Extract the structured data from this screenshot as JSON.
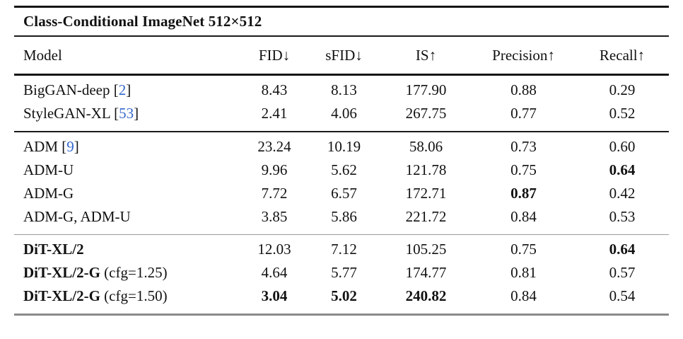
{
  "page": {
    "background": "#ffffff"
  },
  "table": {
    "title": "Class-Conditional ImageNet 512×512",
    "columns": [
      "Model",
      "FID↓",
      "sFID↓",
      "IS↑",
      "Precision↑",
      "Recall↑"
    ],
    "citation_color": "#3366cc",
    "sections": [
      {
        "rows": [
          {
            "model": {
              "name": "BigGAN-deep",
              "bold": false,
              "citation": "2",
              "suffix": ""
            },
            "values": [
              "8.43",
              "8.13",
              "177.90",
              "0.88",
              "0.29"
            ],
            "bold": [
              false,
              false,
              false,
              false,
              false
            ]
          },
          {
            "model": {
              "name": "StyleGAN-XL",
              "bold": false,
              "citation": "53",
              "suffix": ""
            },
            "values": [
              "2.41",
              "4.06",
              "267.75",
              "0.77",
              "0.52"
            ],
            "bold": [
              false,
              false,
              false,
              false,
              false
            ]
          }
        ]
      },
      {
        "rows": [
          {
            "model": {
              "name": "ADM",
              "bold": false,
              "citation": "9",
              "suffix": ""
            },
            "values": [
              "23.24",
              "10.19",
              "58.06",
              "0.73",
              "0.60"
            ],
            "bold": [
              false,
              false,
              false,
              false,
              false
            ]
          },
          {
            "model": {
              "name": "ADM-U",
              "bold": false,
              "citation": "",
              "suffix": ""
            },
            "values": [
              "9.96",
              "5.62",
              "121.78",
              "0.75",
              "0.64"
            ],
            "bold": [
              false,
              false,
              false,
              false,
              true
            ]
          },
          {
            "model": {
              "name": "ADM-G",
              "bold": false,
              "citation": "",
              "suffix": ""
            },
            "values": [
              "7.72",
              "6.57",
              "172.71",
              "0.87",
              "0.42"
            ],
            "bold": [
              false,
              false,
              false,
              true,
              false
            ]
          },
          {
            "model": {
              "name": "ADM-G, ADM-U",
              "bold": false,
              "citation": "",
              "suffix": ""
            },
            "values": [
              "3.85",
              "5.86",
              "221.72",
              "0.84",
              "0.53"
            ],
            "bold": [
              false,
              false,
              false,
              false,
              false
            ]
          }
        ]
      },
      {
        "rows": [
          {
            "model": {
              "name": "DiT-XL/2",
              "bold": true,
              "citation": "",
              "suffix": ""
            },
            "values": [
              "12.03",
              "7.12",
              "105.25",
              "0.75",
              "0.64"
            ],
            "bold": [
              false,
              false,
              false,
              false,
              true
            ]
          },
          {
            "model": {
              "name": "DiT-XL/2-G",
              "bold": true,
              "citation": "",
              "suffix": "(cfg=1.25)"
            },
            "values": [
              "4.64",
              "5.77",
              "174.77",
              "0.81",
              "0.57"
            ],
            "bold": [
              false,
              false,
              false,
              false,
              false
            ]
          },
          {
            "model": {
              "name": "DiT-XL/2-G",
              "bold": true,
              "citation": "",
              "suffix": "(cfg=1.50)"
            },
            "values": [
              "3.04",
              "5.02",
              "240.82",
              "0.84",
              "0.54"
            ],
            "bold": [
              true,
              true,
              true,
              false,
              false
            ]
          }
        ]
      }
    ]
  }
}
